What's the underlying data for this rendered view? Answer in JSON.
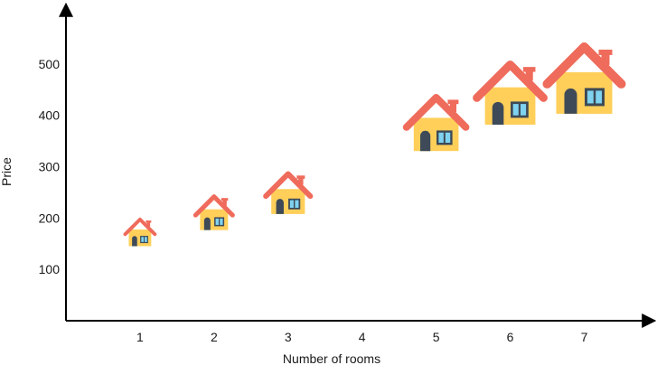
{
  "chart_data": {
    "type": "scatter",
    "marker": "house-icon",
    "title": "",
    "xlabel": "Number of rooms",
    "ylabel": "Price",
    "x_ticks": [
      "1",
      "2",
      "3",
      "4",
      "5",
      "6",
      "7"
    ],
    "y_ticks": [
      "100",
      "200",
      "300",
      "400",
      "500"
    ],
    "xlim": [
      0,
      7.8
    ],
    "ylim": [
      0,
      600
    ],
    "grid": false,
    "points": [
      {
        "x": 1,
        "y": 160,
        "size": 1
      },
      {
        "x": 2,
        "y": 195,
        "size": 2
      },
      {
        "x": 3,
        "y": 230,
        "size": 3
      },
      {
        "x": 5,
        "y": 360,
        "size": 5
      },
      {
        "x": 6,
        "y": 415,
        "size": 6
      },
      {
        "x": 7,
        "y": 440,
        "size": 7
      }
    ]
  },
  "colors": {
    "axis": "#000000",
    "roof": "#ef6b5b",
    "wall": "#ffcf5a",
    "door": "#3e4a57",
    "window": "#7fd3f0",
    "window_frame": "#3e4a57"
  }
}
